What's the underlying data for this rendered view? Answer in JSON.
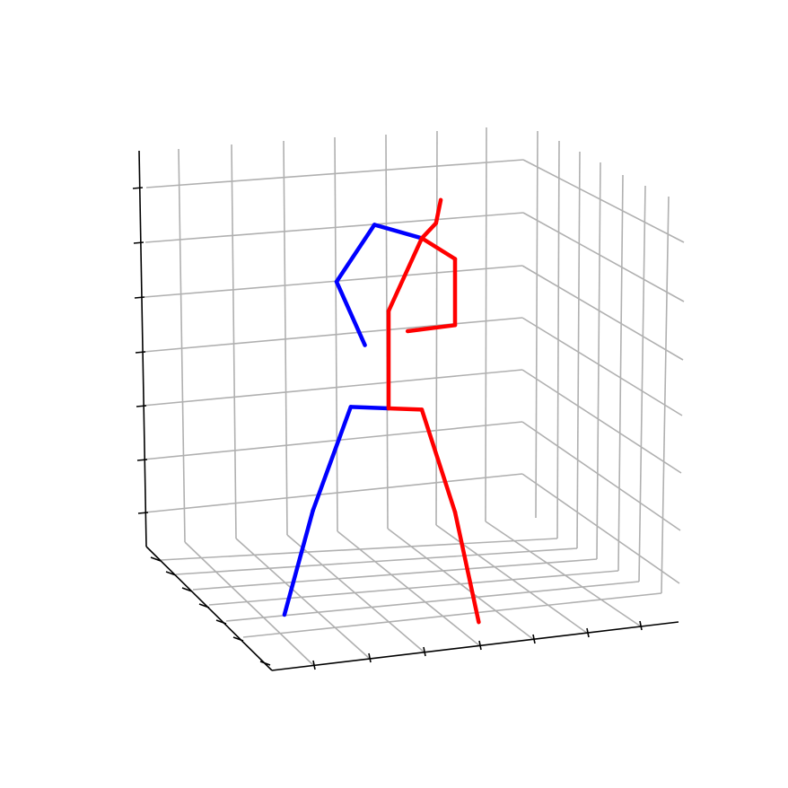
{
  "chart_data": {
    "type": "3d-line",
    "title": "",
    "xlabel": "",
    "ylabel": "",
    "zlabel": "",
    "grid": true,
    "tick_labels_visible": false,
    "colors": {
      "left_side": "#0000ff",
      "right_side": "#ff0000",
      "grid": "#b0b0b0",
      "axis": "#000000"
    },
    "skeleton": {
      "joints": [
        {
          "name": "head-top",
          "value": [
            0.54,
            0.33,
            0.94
          ]
        },
        {
          "name": "head",
          "value": [
            0.53,
            0.33,
            0.88
          ]
        },
        {
          "name": "neck",
          "value": [
            0.5,
            0.33,
            0.84
          ]
        },
        {
          "name": "left-shoulder",
          "value": [
            0.4,
            0.33,
            0.87
          ]
        },
        {
          "name": "left-elbow",
          "value": [
            0.32,
            0.33,
            0.72
          ]
        },
        {
          "name": "left-wrist",
          "value": [
            0.38,
            0.33,
            0.56
          ]
        },
        {
          "name": "right-shoulder",
          "value": [
            0.57,
            0.33,
            0.79
          ]
        },
        {
          "name": "right-elbow",
          "value": [
            0.57,
            0.33,
            0.62
          ]
        },
        {
          "name": "right-wrist",
          "value": [
            0.47,
            0.33,
            0.6
          ]
        },
        {
          "name": "spine",
          "value": [
            0.43,
            0.33,
            0.65
          ]
        },
        {
          "name": "hip-center",
          "value": [
            0.43,
            0.33,
            0.4
          ]
        },
        {
          "name": "left-hip",
          "value": [
            0.35,
            0.33,
            0.4
          ]
        },
        {
          "name": "left-knee",
          "value": [
            0.27,
            0.33,
            0.13
          ]
        },
        {
          "name": "left-ankle",
          "value": [
            0.21,
            0.33,
            -0.14
          ]
        },
        {
          "name": "right-hip",
          "value": [
            0.5,
            0.33,
            0.4
          ]
        },
        {
          "name": "right-knee",
          "value": [
            0.57,
            0.33,
            0.14
          ]
        },
        {
          "name": "right-ankle",
          "value": [
            0.62,
            0.33,
            -0.14
          ]
        }
      ],
      "bones": [
        {
          "from": "left-hip",
          "to": "hip-center",
          "side": "left"
        },
        {
          "from": "left-hip",
          "to": "left-knee",
          "side": "left"
        },
        {
          "from": "left-knee",
          "to": "left-ankle",
          "side": "left"
        },
        {
          "from": "neck",
          "to": "left-shoulder",
          "side": "left"
        },
        {
          "from": "left-shoulder",
          "to": "left-elbow",
          "side": "left"
        },
        {
          "from": "left-elbow",
          "to": "left-wrist",
          "side": "left"
        },
        {
          "from": "hip-center",
          "to": "right-hip",
          "side": "right"
        },
        {
          "from": "right-hip",
          "to": "right-knee",
          "side": "right"
        },
        {
          "from": "right-knee",
          "to": "right-ankle",
          "side": "right"
        },
        {
          "from": "hip-center",
          "to": "spine",
          "side": "right"
        },
        {
          "from": "spine",
          "to": "neck",
          "side": "right"
        },
        {
          "from": "neck",
          "to": "head",
          "side": "right"
        },
        {
          "from": "head",
          "to": "head-top",
          "side": "right"
        },
        {
          "from": "neck",
          "to": "right-shoulder",
          "side": "right"
        },
        {
          "from": "right-shoulder",
          "to": "right-elbow",
          "side": "right"
        },
        {
          "from": "right-elbow",
          "to": "right-wrist",
          "side": "right"
        }
      ]
    }
  }
}
